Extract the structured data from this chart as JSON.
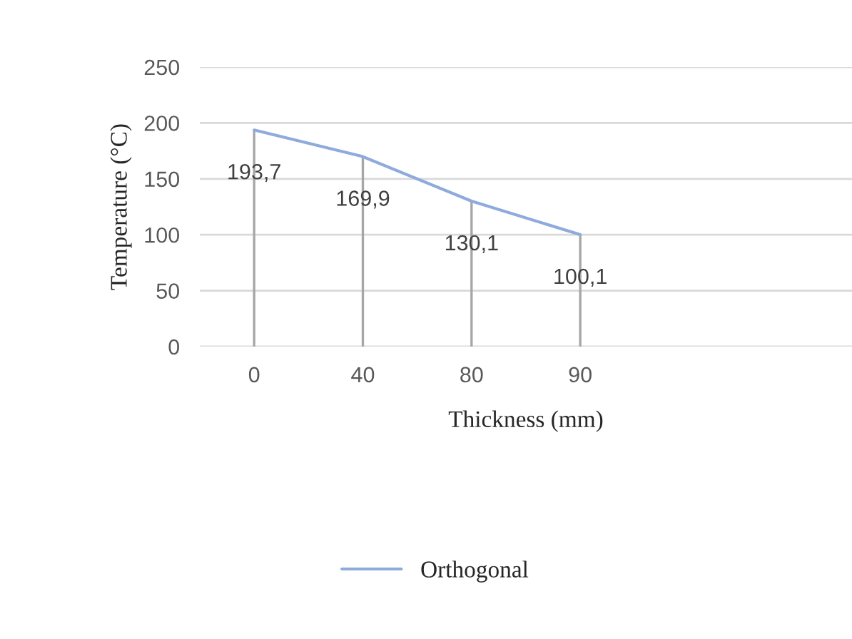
{
  "chart_data": {
    "type": "line",
    "xlabel": "Thickness (mm)",
    "ylabel": "Temperature (°C)",
    "categories": [
      "0",
      "40",
      "80",
      "90",
      null,
      null
    ],
    "series": [
      {
        "name": "Orthogonal",
        "color": "#8faadc",
        "values": [
          193.7,
          169.9,
          130.1,
          100.1,
          null,
          null
        ],
        "value_labels": [
          "193,7",
          "169,9",
          "130,1",
          "100,1",
          null,
          null
        ],
        "errors": [
          [
            193.7,
            0
          ],
          [
            169.9,
            0
          ],
          [
            130.1,
            0
          ],
          [
            100.1,
            0
          ],
          null,
          null
        ]
      }
    ],
    "ylim": [
      0,
      250
    ],
    "yticks": [
      0,
      50,
      100,
      150,
      200,
      250
    ],
    "grid": "y",
    "legend": "bottom",
    "marker": "none",
    "line_style": "solid"
  }
}
